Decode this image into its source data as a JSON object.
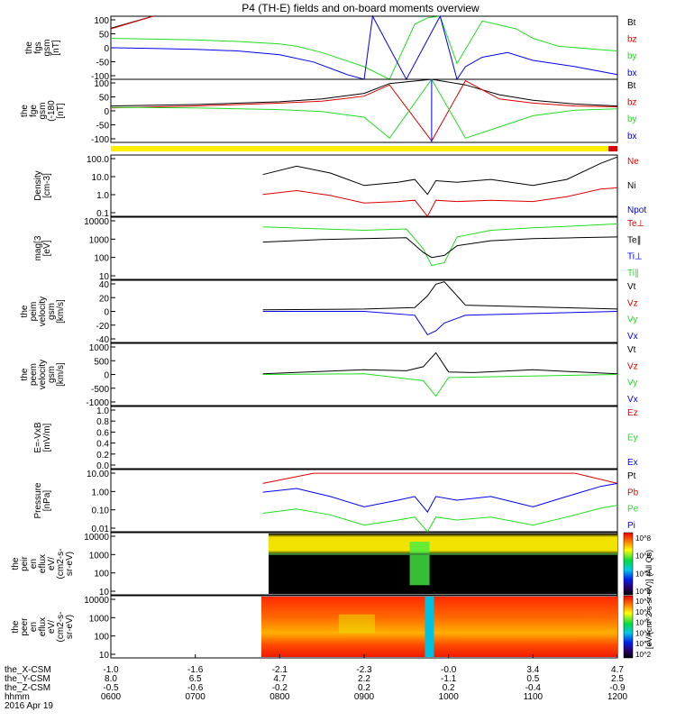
{
  "title": "P4 (TH-E) fields and on-board moments overview",
  "date": "2016 Apr 19",
  "colors": {
    "black": "#000000",
    "red": "#dd0000",
    "green": "#22dd22",
    "blue": "#0000ee"
  },
  "chart_data": [
    {
      "type": "line",
      "panel": "fgs",
      "ylabel": [
        "the",
        "fgs",
        "gsm",
        "[nT]"
      ],
      "ylim": [
        -100,
        100
      ],
      "yticks": [
        "100",
        "50",
        "0",
        "-50",
        "-100"
      ],
      "legend": [
        "Bt",
        "bz",
        "by",
        "bx"
      ],
      "series": [
        {
          "name": "Bt",
          "color": "black",
          "x": [
            0,
            0.5
          ],
          "y": [
            62,
            100
          ]
        },
        {
          "name": "bz",
          "color": "red",
          "x": [
            0,
            0.5
          ],
          "y": [
            60,
            100
          ]
        },
        {
          "name": "by",
          "color": "green",
          "x": [
            0,
            1,
            1.5,
            2.0,
            2.2,
            2.5,
            3.0,
            3.3,
            3.6,
            3.75,
            3.9,
            4.1,
            4.4,
            4.8,
            5.0,
            5.3,
            5.8,
            6.0
          ],
          "y": [
            30,
            25,
            20,
            12,
            5,
            -15,
            -60,
            -100,
            75,
            95,
            100,
            -50,
            85,
            60,
            30,
            5,
            -6,
            -10
          ]
        },
        {
          "name": "bx",
          "color": "blue",
          "x": [
            0,
            0.5,
            1,
            1.5,
            2,
            2.4,
            2.8,
            3.0,
            3.1,
            3.5,
            3.9,
            4.1,
            4.2,
            4.4,
            4.7,
            5.0,
            5.5,
            6.0
          ],
          "y": [
            0,
            -2,
            -5,
            -10,
            -22,
            -45,
            -85,
            -100,
            100,
            -100,
            100,
            -100,
            -60,
            -30,
            -15,
            -40,
            -60,
            -85
          ]
        }
      ]
    },
    {
      "type": "line",
      "panel": "fge",
      "ylabel": [
        "the",
        "fge",
        "gsm",
        "(-180",
        "[nT]"
      ],
      "ylim": [
        -125,
        100
      ],
      "yticks": [
        "100",
        "50",
        "0",
        "-50",
        "-100"
      ],
      "legend": [
        "Bt",
        "bz",
        "by",
        "bx"
      ],
      "series": [
        {
          "name": "Bt",
          "color": "black",
          "x": [
            0,
            1,
            2,
            2.5,
            3.0,
            3.3,
            3.8,
            4.2,
            4.6,
            5.0,
            5.5,
            6.0
          ],
          "y": [
            5,
            10,
            20,
            30,
            50,
            85,
            100,
            80,
            45,
            25,
            12,
            5
          ]
        },
        {
          "name": "bz",
          "color": "red",
          "x": [
            0,
            1,
            2,
            2.5,
            3.0,
            3.3,
            3.8,
            4.2,
            4.6,
            5.0,
            5.5,
            6.0
          ],
          "y": [
            -2,
            5,
            15,
            22,
            40,
            80,
            -120,
            95,
            30,
            15,
            5,
            2
          ]
        },
        {
          "name": "by",
          "color": "green",
          "x": [
            0,
            1,
            2,
            2.5,
            3.0,
            3.3,
            3.8,
            4.2,
            4.6,
            5.0,
            5.5,
            6.0
          ],
          "y": [
            0,
            -2,
            -8,
            -15,
            -35,
            -110,
            100,
            -110,
            -70,
            -30,
            -10,
            -5
          ]
        },
        {
          "name": "bx",
          "color": "blue",
          "x": [
            3.8,
            3.8
          ],
          "y": [
            -125,
            100
          ]
        }
      ]
    },
    {
      "type": "line",
      "panel": "density",
      "ylabel": [
        "Density",
        "[cm-3]"
      ],
      "scale": "log",
      "ylim": [
        0.03,
        200
      ],
      "yticks": [
        "100.0",
        "10.0",
        "1.0",
        "0.1"
      ],
      "legend": [
        "Ne",
        "Ni",
        "Npot"
      ],
      "series": [
        {
          "name": "Ne",
          "color": "red",
          "x": [
            1.8,
            2.2,
            2.6,
            3.0,
            3.4,
            3.6,
            3.75,
            3.85,
            4.1,
            4.5,
            5.0,
            5.4,
            5.8,
            6.0
          ],
          "y": [
            0.7,
            1.2,
            0.6,
            0.2,
            0.25,
            0.3,
            0.03,
            0.3,
            0.25,
            0.3,
            0.25,
            0.5,
            1.5,
            1.8
          ]
        },
        {
          "name": "Ni",
          "color": "black",
          "x": [
            1.8,
            2.2,
            2.6,
            3.0,
            3.4,
            3.6,
            3.75,
            3.85,
            4.1,
            4.5,
            5.0,
            5.4,
            5.8,
            6.0
          ],
          "y": [
            12,
            40,
            15,
            2.5,
            4,
            6,
            0.7,
            5,
            4,
            6,
            2.5,
            6,
            60,
            150
          ]
        }
      ]
    },
    {
      "type": "line",
      "panel": "temperature",
      "ylabel": [
        "mag[3",
        "[eV]"
      ],
      "scale": "log",
      "ylim": [
        3,
        15000
      ],
      "yticks": [
        "10000",
        "1000",
        "100",
        "10"
      ],
      "legend": [
        "Te⊥",
        "Te∥",
        "Ti⊥",
        "Ti∥"
      ],
      "series": [
        {
          "name": "Ti∥",
          "color": "green",
          "x": [
            1.8,
            2.5,
            3.0,
            3.5,
            3.7,
            3.8,
            3.95,
            4.1,
            4.5,
            5.0,
            5.5,
            6.0
          ],
          "y": [
            4000,
            3000,
            2500,
            3000,
            200,
            20,
            30,
            1000,
            2500,
            3500,
            4500,
            6000
          ]
        },
        {
          "name": "Te∥",
          "color": "black",
          "x": [
            1.8,
            2.5,
            3.0,
            3.5,
            3.7,
            3.8,
            3.95,
            4.1,
            4.5,
            5.0,
            5.5,
            6.0
          ],
          "y": [
            500,
            700,
            800,
            900,
            120,
            60,
            80,
            300,
            600,
            800,
            900,
            1000
          ]
        }
      ]
    },
    {
      "type": "line",
      "panel": "esa-velocity",
      "ylabel": [
        "the",
        "peim",
        "velocity",
        "gsm",
        "[km/s]"
      ],
      "ylim": [
        -40,
        40
      ],
      "yticks": [
        "40",
        "20",
        "0",
        "-20",
        "-40"
      ],
      "legend": [
        "Vt",
        "Vz",
        "Vy",
        "Vx"
      ],
      "series": [
        {
          "name": "Vt",
          "color": "black",
          "x": [
            1.8,
            3.0,
            3.6,
            3.75,
            3.85,
            3.95,
            4.2,
            6.0
          ],
          "y": [
            2,
            3,
            5,
            20,
            35,
            38,
            8,
            3
          ]
        },
        {
          "name": "Vx",
          "color": "blue",
          "x": [
            1.8,
            3.0,
            3.6,
            3.75,
            3.85,
            3.95,
            4.2,
            6.0
          ],
          "y": [
            0,
            0,
            -5,
            -30,
            -25,
            -15,
            -5,
            0
          ]
        }
      ]
    },
    {
      "type": "line",
      "panel": "esa-velocity-2",
      "ylabel": [
        "the",
        "peem",
        "velocity",
        "gsm",
        "[km/s]"
      ],
      "ylim": [
        -1000,
        1000
      ],
      "yticks": [
        "1000",
        "500",
        "0",
        "-500",
        "-1000"
      ],
      "legend": [
        "Vt",
        "Vz",
        "Vy",
        "Vx"
      ],
      "series": [
        {
          "name": "Vt",
          "color": "black",
          "x": [
            1.8,
            2.5,
            3.0,
            3.5,
            3.7,
            3.85,
            4.0,
            4.3,
            5.0,
            6.0
          ],
          "y": [
            20,
            100,
            150,
            120,
            250,
            700,
            80,
            60,
            150,
            20
          ]
        },
        {
          "name": "Vy",
          "color": "green",
          "x": [
            1.8,
            3.0,
            3.7,
            3.85,
            4.0,
            6.0
          ],
          "y": [
            0,
            20,
            -200,
            -700,
            -100,
            0
          ]
        }
      ]
    },
    {
      "type": "line",
      "panel": "efield",
      "ylabel": [
        "E=-VxB",
        "[mV/m]"
      ],
      "ylim": [
        0,
        1
      ],
      "yticks": [
        "1.0",
        "0.8",
        "0.6",
        "0.4",
        "0.2",
        "0.0"
      ],
      "legend": [
        "Ez",
        "Ey",
        "Ex"
      ],
      "series": []
    },
    {
      "type": "line",
      "panel": "pressure",
      "ylabel": [
        "Pressure",
        "[nPa]"
      ],
      "scale": "log",
      "ylim": [
        0.004,
        20
      ],
      "yticks": [
        "10.00",
        "1.00",
        "0.10",
        "0.01"
      ],
      "legend": [
        "Pt",
        "Pb",
        "Pe",
        "Pi"
      ],
      "series": [
        {
          "name": "Pb",
          "color": "red",
          "x": [
            1.8,
            2.4,
            5.5,
            6.0
          ],
          "y": [
            3,
            12,
            12,
            3
          ]
        },
        {
          "name": "Pi",
          "color": "blue",
          "x": [
            1.8,
            2.2,
            2.6,
            3.0,
            3.4,
            3.6,
            3.75,
            3.85,
            4.1,
            4.5,
            5.0,
            5.4,
            5.8,
            6.0
          ],
          "y": [
            0.9,
            1.5,
            0.5,
            0.12,
            0.3,
            0.5,
            0.06,
            0.5,
            0.3,
            0.5,
            0.12,
            0.5,
            2,
            3
          ]
        },
        {
          "name": "Pe",
          "color": "green",
          "x": [
            1.8,
            2.2,
            2.6,
            3.0,
            3.4,
            3.6,
            3.75,
            3.85,
            4.1,
            4.5,
            5.0,
            5.4,
            5.8,
            6.0
          ],
          "y": [
            0.05,
            0.09,
            0.04,
            0.01,
            0.02,
            0.03,
            0.004,
            0.03,
            0.02,
            0.03,
            0.01,
            0.03,
            0.1,
            0.15
          ]
        }
      ]
    },
    {
      "type": "heatmap",
      "panel": "ion-spectrogram",
      "ylabel": [
        "the",
        "peir",
        "en",
        "eflux",
        "eV/",
        "(cm2-s-",
        "sr-eV)"
      ],
      "yticks": [
        "10000",
        "1000",
        "100",
        "10"
      ],
      "colorbar": "[eV/(cm^2-s-sr-eV)] (All Qs)",
      "colorbar_ticks": [
        "10^8",
        "10^6",
        "10^4",
        "10^2"
      ]
    },
    {
      "type": "heatmap",
      "panel": "electron-spectrogram",
      "ylabel": [
        "the",
        "peer",
        "en",
        "eflux",
        "eV/",
        "(cm2-s-",
        "sr-eV)"
      ],
      "yticks": [
        "10000",
        "1000",
        "100",
        "10"
      ],
      "colorbar_ticks": [
        "10^7",
        "10^6",
        "10^5",
        "10^4",
        "10^3",
        "10^2"
      ]
    }
  ],
  "legend_labels": {
    "fgs": [
      "Bt",
      "bz",
      "by",
      "bx"
    ],
    "fge": [
      "Bt",
      "bz",
      "by",
      "bx"
    ],
    "density": [
      "Ne",
      "Ni",
      "Npot"
    ],
    "temperature": [
      "Te⊥",
      "Te∥",
      "Ti⊥",
      "Ti∥"
    ],
    "esa_velocity": [
      "Vt",
      "Vz",
      "Vy",
      "Vx"
    ],
    "esa_velocity_2": [
      "Vt",
      "Vz",
      "Vy",
      "Vx"
    ],
    "efield": [
      "Ez",
      "Ey",
      "Ex"
    ],
    "pressure": [
      "Pt",
      "Pb",
      "Pe",
      "Pi"
    ]
  },
  "x_axis": {
    "rows": [
      {
        "label": "the_X-CSM",
        "values": [
          "-1.0",
          "-1.6",
          "-2.1",
          "-2.3",
          "-0.0",
          "3.4",
          "4.7"
        ]
      },
      {
        "label": "the_Y-CSM",
        "values": [
          "8.0",
          "6.5",
          "4.7",
          "2.2",
          "-1.1",
          "0.5",
          "2.5"
        ]
      },
      {
        "label": "the_Z-CSM",
        "values": [
          "-0.5",
          "-0.6",
          "-0.2",
          "0.2",
          "0.2",
          "-0.4",
          "-0.9"
        ]
      },
      {
        "label": "hhmm",
        "values": [
          "0600",
          "0700",
          "0800",
          "0900",
          "1000",
          "1100",
          "1200"
        ]
      }
    ]
  }
}
